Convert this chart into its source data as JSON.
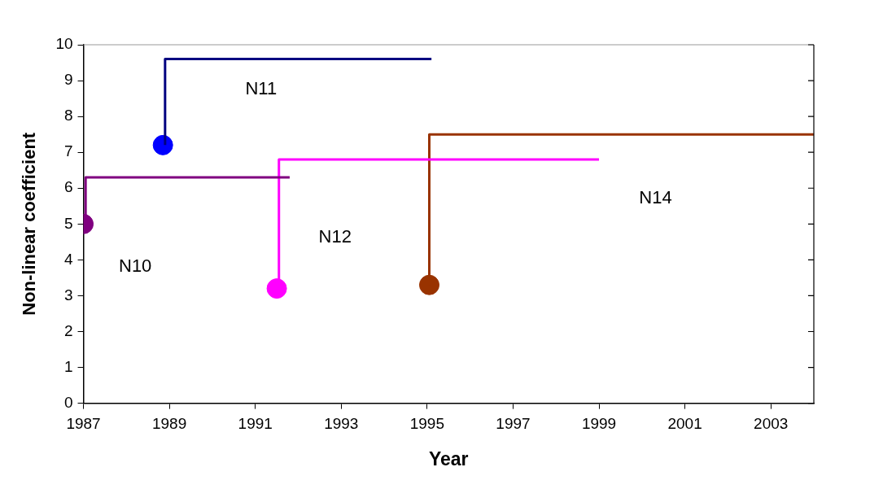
{
  "chart_data": {
    "type": "line",
    "xlabel": "Year",
    "ylabel": "Non-linear coefficient",
    "xlim": [
      1987,
      2004
    ],
    "xticks": [
      1987,
      1989,
      1991,
      1993,
      1995,
      1997,
      1999,
      2001,
      2003
    ],
    "ylim": [
      0,
      10
    ],
    "yticks": [
      0,
      1,
      2,
      3,
      4,
      5,
      6,
      7,
      8,
      9,
      10
    ],
    "grid": false,
    "legend": false,
    "marker": "none",
    "line_style": "solid",
    "series": [
      {
        "name": "N10",
        "color": "#800080",
        "x": [
          1987.05,
          1987.05,
          1991.8
        ],
        "values": [
          5.0,
          6.3,
          6.3
        ]
      },
      {
        "name": "N11",
        "color": "#000080",
        "x": [
          1988.9,
          1988.9,
          1995.1
        ],
        "values": [
          7.2,
          9.6,
          9.6
        ]
      },
      {
        "name": "N12",
        "color": "#ff00ff",
        "x": [
          1991.55,
          1991.55,
          1999.0
        ],
        "values": [
          3.2,
          6.8,
          6.8
        ]
      },
      {
        "name": "N14",
        "color": "#993300",
        "x": [
          1995.05,
          1995.05,
          2004.0
        ],
        "values": [
          3.3,
          7.5,
          7.5
        ]
      },
      {
        "type": "scatter",
        "marker": "circle",
        "x": [
          1987.0,
          1988.85,
          1991.5,
          1995.05
        ],
        "values": [
          5.0,
          7.2,
          3.2,
          3.3
        ],
        "colors": [
          "#800080",
          "#0000ff",
          "#ff00ff",
          "#993300"
        ]
      }
    ]
  }
}
